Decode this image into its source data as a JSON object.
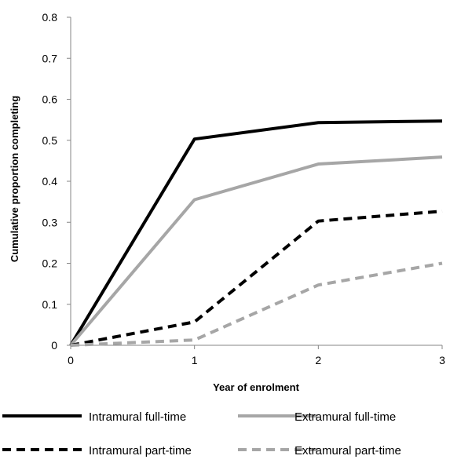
{
  "chart_data": {
    "type": "line",
    "title": "",
    "xlabel": "Year of enrolment",
    "ylabel": "Cumulative proportion completing",
    "x": [
      0,
      1,
      2,
      3
    ],
    "xlim": [
      0,
      3
    ],
    "ylim": [
      0,
      0.8
    ],
    "x_ticks": [
      "0",
      "1",
      "2",
      "3"
    ],
    "y_ticks": [
      "0",
      "0.1",
      "0.2",
      "0.3",
      "0.4",
      "0.5",
      "0.6",
      "0.7",
      "0.8"
    ],
    "grid": false,
    "legend_position": "bottom",
    "series": [
      {
        "name": "Intramural full-time",
        "values": [
          0,
          0.503,
          0.543,
          0.547
        ],
        "color": "#000000",
        "dash": "solid"
      },
      {
        "name": "Extramural full-time",
        "values": [
          0,
          0.355,
          0.442,
          0.459
        ],
        "color": "#a6a6a6",
        "dash": "solid"
      },
      {
        "name": "Intramural part-time",
        "values": [
          0,
          0.057,
          0.303,
          0.327
        ],
        "color": "#000000",
        "dash": "dashed"
      },
      {
        "name": "Extramural part-time",
        "values": [
          0,
          0.013,
          0.147,
          0.2
        ],
        "color": "#a6a6a6",
        "dash": "dashed"
      }
    ]
  }
}
